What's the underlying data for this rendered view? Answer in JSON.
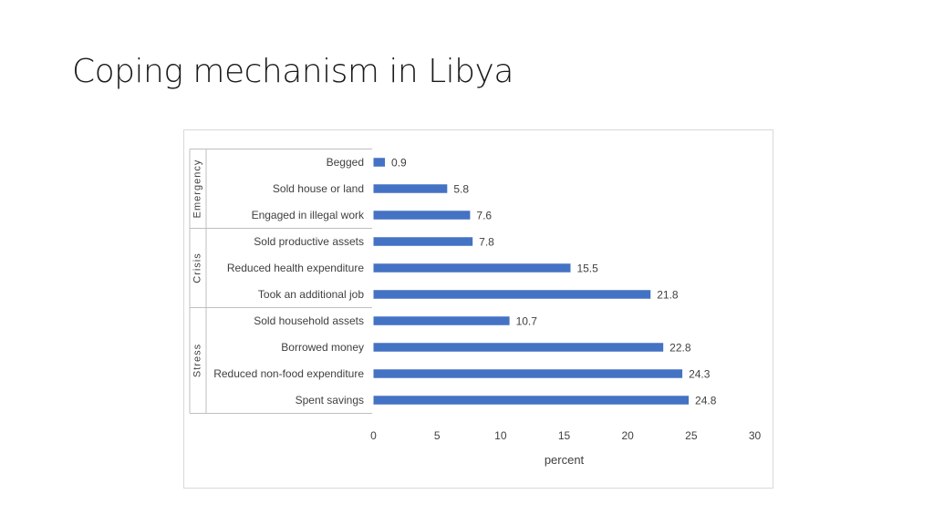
{
  "slide": {
    "title": "Coping mechanism in Libya"
  },
  "colors": {
    "bar": "#4472c4",
    "grid_line": "#bfbfbf"
  },
  "chart_data": {
    "type": "bar",
    "orientation": "horizontal",
    "categories": [
      "Begged",
      "Sold house or land",
      "Engaged in illegal work",
      "Sold productive assets",
      "Reduced health expenditure",
      "Took an additional job",
      "Sold household assets",
      "Borrowed money",
      "Reduced non-food expenditure",
      "Spent savings"
    ],
    "values": [
      0.9,
      5.8,
      7.6,
      7.8,
      15.5,
      21.8,
      10.7,
      22.8,
      24.3,
      24.8
    ],
    "value_labels": [
      "0.9",
      "5.8",
      "7.6",
      "7.8",
      "15.5",
      "21.8",
      "10.7",
      "22.8",
      "24.3",
      "24.8"
    ],
    "groups": [
      {
        "name": "Emergency",
        "start": 0,
        "count": 3
      },
      {
        "name": "Crisis",
        "start": 3,
        "count": 3
      },
      {
        "name": "Stress",
        "start": 6,
        "count": 4
      }
    ],
    "xlabel": "percent",
    "ylabel": "",
    "xlim": [
      0,
      30
    ],
    "xticks": [
      "0",
      "5",
      "10",
      "15",
      "20",
      "25",
      "30"
    ],
    "grid": false,
    "legend": "none"
  }
}
